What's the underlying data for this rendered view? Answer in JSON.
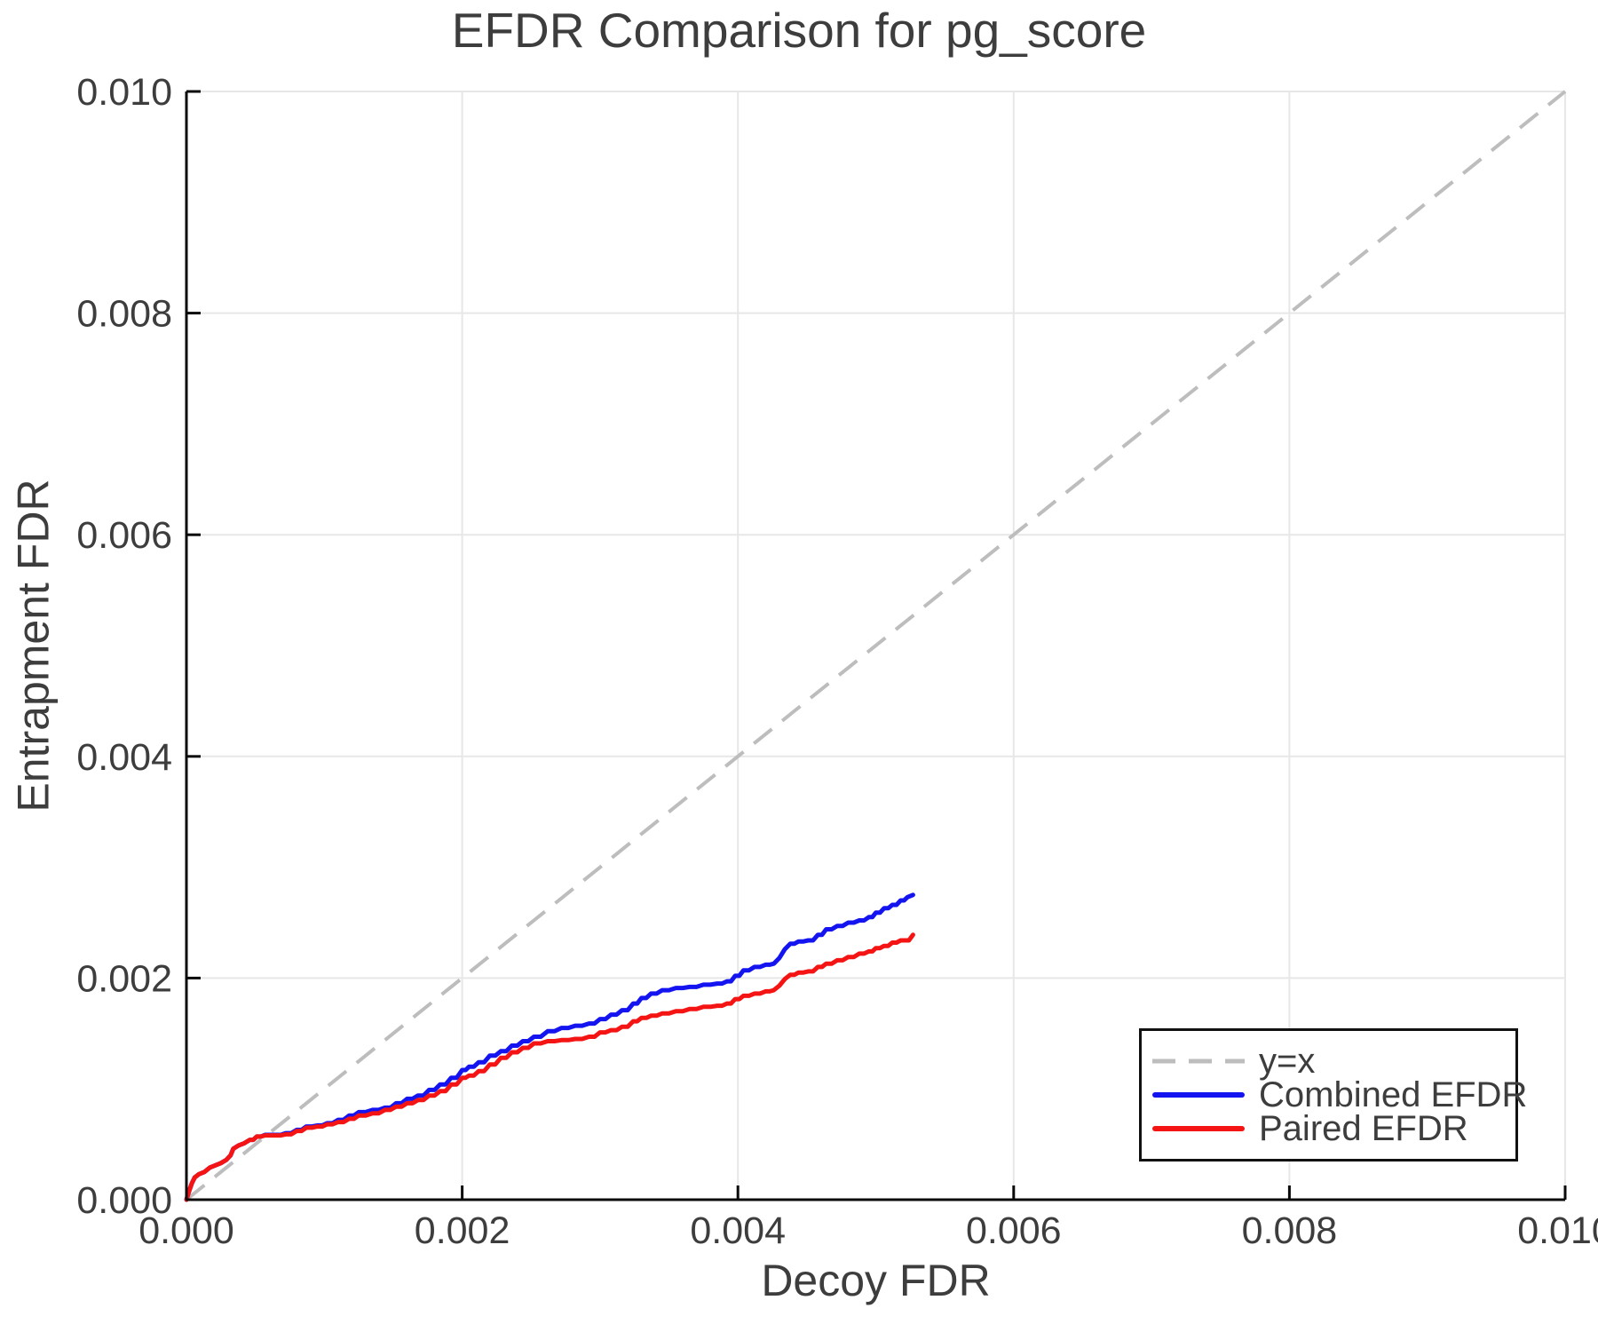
{
  "figure": {
    "title": "EFDR Comparison for pg_score",
    "xlabel": "Decoy FDR",
    "ylabel": "Entrapment FDR"
  },
  "colors": {
    "text": "#3d3d3d",
    "axis": "#0a0a0a",
    "grid": "#e7e7e7",
    "diagonal": "#bdbdbd",
    "combined": "#1414f0",
    "paired": "#f51414",
    "legend_border": "#111111",
    "background": "#ffffff"
  },
  "chart_data": {
    "type": "line",
    "title": "EFDR Comparison for pg_score",
    "xlabel": "Decoy FDR",
    "ylabel": "Entrapment FDR",
    "xlim": [
      0.0,
      0.01
    ],
    "ylim": [
      0.0,
      0.01
    ],
    "grid": true,
    "xticks": {
      "values": [
        0.0,
        0.002,
        0.004,
        0.006,
        0.008,
        0.01
      ],
      "labels": [
        "0.000",
        "0.002",
        "0.004",
        "0.006",
        "0.008",
        "0.010"
      ]
    },
    "yticks": {
      "values": [
        0.0,
        0.002,
        0.004,
        0.006,
        0.008,
        0.01
      ],
      "labels": [
        "0.000",
        "0.002",
        "0.004",
        "0.006",
        "0.008",
        "0.010"
      ]
    },
    "legend": {
      "position": "bottom-right"
    },
    "series": [
      {
        "name": "y=x",
        "style": "dashed",
        "color": "#bdbdbd",
        "points": [
          [
            0.0,
            0.0
          ],
          [
            0.01,
            0.01
          ]
        ]
      },
      {
        "name": "Combined EFDR",
        "style": "solid",
        "color": "#1414f0",
        "points": [
          [
            0.0,
            0.0
          ],
          [
            2e-05,
            8e-05
          ],
          [
            4e-05,
            0.00015
          ],
          [
            6e-05,
            0.0002
          ],
          [
            9e-05,
            0.00023
          ],
          [
            0.00013,
            0.00025
          ],
          [
            0.00017,
            0.00029
          ],
          [
            0.00021,
            0.00031
          ],
          [
            0.00025,
            0.00033
          ],
          [
            0.00029,
            0.00036
          ],
          [
            0.00032,
            0.0004
          ],
          [
            0.00034,
            0.00046
          ],
          [
            0.00038,
            0.00049
          ],
          [
            0.00042,
            0.00051
          ],
          [
            0.00046,
            0.00054
          ],
          [
            0.00051,
            0.00057
          ],
          [
            0.00057,
            0.000585
          ],
          [
            0.00065,
            0.000585
          ],
          [
            0.00072,
            0.0006
          ],
          [
            0.0008,
            0.00063
          ],
          [
            0.00087,
            0.00066
          ],
          [
            0.00095,
            0.00067
          ],
          [
            0.00102,
            0.00069
          ],
          [
            0.0011,
            0.00072
          ],
          [
            0.00118,
            0.00076
          ],
          [
            0.00125,
            0.00079
          ],
          [
            0.00135,
            0.00081
          ],
          [
            0.00144,
            0.00083
          ],
          [
            0.00152,
            0.00087
          ],
          [
            0.0016,
            0.00091
          ],
          [
            0.00168,
            0.00094
          ],
          [
            0.00176,
            0.00099
          ],
          [
            0.00184,
            0.00104
          ],
          [
            0.00192,
            0.0011
          ],
          [
            0.002,
            0.00117
          ],
          [
            0.00205,
            0.0012
          ],
          [
            0.00212,
            0.00124
          ],
          [
            0.0022,
            0.0013
          ],
          [
            0.00228,
            0.00134
          ],
          [
            0.00236,
            0.00139
          ],
          [
            0.00244,
            0.00143
          ],
          [
            0.00252,
            0.00147
          ],
          [
            0.00262,
            0.00152
          ],
          [
            0.00272,
            0.00155
          ],
          [
            0.00282,
            0.00157
          ],
          [
            0.00292,
            0.00159
          ],
          [
            0.003,
            0.00163
          ],
          [
            0.00308,
            0.00167
          ],
          [
            0.00316,
            0.00171
          ],
          [
            0.00324,
            0.00177
          ],
          [
            0.0033,
            0.00182
          ],
          [
            0.00337,
            0.00186
          ],
          [
            0.00345,
            0.00189
          ],
          [
            0.00355,
            0.00191
          ],
          [
            0.00365,
            0.00192
          ],
          [
            0.00375,
            0.00194
          ],
          [
            0.00385,
            0.00195
          ],
          [
            0.00392,
            0.00197
          ],
          [
            0.00398,
            0.00202
          ],
          [
            0.00404,
            0.00207
          ],
          [
            0.00412,
            0.0021
          ],
          [
            0.0042,
            0.00212
          ],
          [
            0.00426,
            0.00213
          ],
          [
            0.0043,
            0.00218
          ],
          [
            0.00434,
            0.00226
          ],
          [
            0.00438,
            0.00231
          ],
          [
            0.00444,
            0.00233
          ],
          [
            0.00451,
            0.00234
          ],
          [
            0.00458,
            0.00239
          ],
          [
            0.00464,
            0.00244
          ],
          [
            0.00472,
            0.00247
          ],
          [
            0.0048,
            0.0025
          ],
          [
            0.00488,
            0.00252
          ],
          [
            0.00495,
            0.00255
          ],
          [
            0.005,
            0.00259
          ],
          [
            0.00506,
            0.00263
          ],
          [
            0.00512,
            0.00266
          ],
          [
            0.00518,
            0.0027
          ],
          [
            0.00523,
            0.00273
          ],
          [
            0.00527,
            0.00275
          ]
        ]
      },
      {
        "name": "Paired EFDR",
        "style": "solid",
        "color": "#f51414",
        "points": [
          [
            0.0,
            0.0
          ],
          [
            2e-05,
            8e-05
          ],
          [
            4e-05,
            0.00015
          ],
          [
            6e-05,
            0.0002
          ],
          [
            9e-05,
            0.00023
          ],
          [
            0.00013,
            0.00025
          ],
          [
            0.00017,
            0.00029
          ],
          [
            0.00021,
            0.00031
          ],
          [
            0.00025,
            0.00033
          ],
          [
            0.00029,
            0.00036
          ],
          [
            0.00032,
            0.0004
          ],
          [
            0.00034,
            0.00046
          ],
          [
            0.00038,
            0.00049
          ],
          [
            0.00042,
            0.00051
          ],
          [
            0.00046,
            0.00054
          ],
          [
            0.00051,
            0.00057
          ],
          [
            0.00057,
            0.00058
          ],
          [
            0.00065,
            0.00058
          ],
          [
            0.00072,
            0.00059
          ],
          [
            0.0008,
            0.00062
          ],
          [
            0.00087,
            0.00065
          ],
          [
            0.00095,
            0.00066
          ],
          [
            0.00102,
            0.00068
          ],
          [
            0.0011,
            0.0007
          ],
          [
            0.00118,
            0.00073
          ],
          [
            0.00125,
            0.00076
          ],
          [
            0.00135,
            0.00078
          ],
          [
            0.00144,
            0.00081
          ],
          [
            0.00152,
            0.00084
          ],
          [
            0.0016,
            0.00087
          ],
          [
            0.00168,
            0.0009
          ],
          [
            0.00176,
            0.00094
          ],
          [
            0.00184,
            0.00098
          ],
          [
            0.00192,
            0.00104
          ],
          [
            0.002,
            0.0011
          ],
          [
            0.00205,
            0.00112
          ],
          [
            0.00212,
            0.00116
          ],
          [
            0.0022,
            0.00122
          ],
          [
            0.00228,
            0.00128
          ],
          [
            0.00236,
            0.00133
          ],
          [
            0.00244,
            0.00137
          ],
          [
            0.00252,
            0.00141
          ],
          [
            0.00262,
            0.00143
          ],
          [
            0.00272,
            0.00144
          ],
          [
            0.00282,
            0.00145
          ],
          [
            0.00292,
            0.00147
          ],
          [
            0.003,
            0.00151
          ],
          [
            0.00308,
            0.00153
          ],
          [
            0.00316,
            0.00156
          ],
          [
            0.00324,
            0.00161
          ],
          [
            0.0033,
            0.00164
          ],
          [
            0.00337,
            0.00166
          ],
          [
            0.00345,
            0.00168
          ],
          [
            0.00355,
            0.0017
          ],
          [
            0.00365,
            0.00172
          ],
          [
            0.00375,
            0.00174
          ],
          [
            0.00385,
            0.00175
          ],
          [
            0.00392,
            0.00177
          ],
          [
            0.00398,
            0.00181
          ],
          [
            0.00404,
            0.00184
          ],
          [
            0.00412,
            0.00186
          ],
          [
            0.0042,
            0.00188
          ],
          [
            0.00426,
            0.00189
          ],
          [
            0.0043,
            0.00193
          ],
          [
            0.00434,
            0.00199
          ],
          [
            0.00438,
            0.00203
          ],
          [
            0.00444,
            0.00205
          ],
          [
            0.00451,
            0.00206
          ],
          [
            0.00458,
            0.0021
          ],
          [
            0.00464,
            0.00213
          ],
          [
            0.00472,
            0.00216
          ],
          [
            0.0048,
            0.00219
          ],
          [
            0.00488,
            0.00222
          ],
          [
            0.00495,
            0.00224
          ],
          [
            0.005,
            0.00227
          ],
          [
            0.00506,
            0.00229
          ],
          [
            0.00512,
            0.00232
          ],
          [
            0.00518,
            0.00234
          ],
          [
            0.00521,
            0.00234
          ],
          [
            0.00527,
            0.00239
          ]
        ]
      }
    ]
  }
}
